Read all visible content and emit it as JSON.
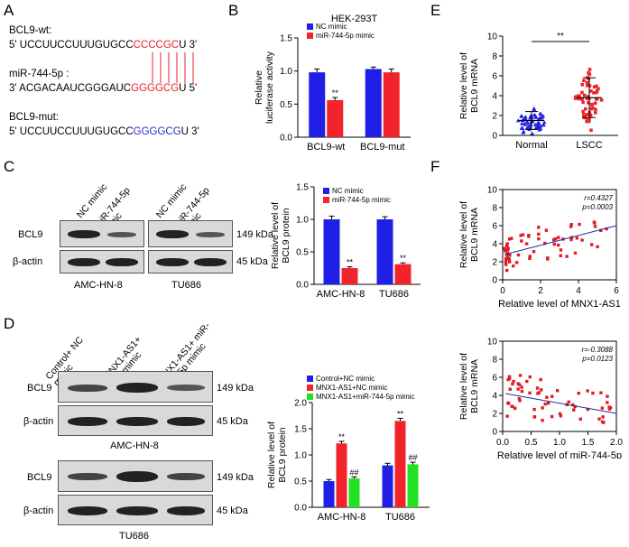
{
  "panel_labels": {
    "A": "A",
    "B": "B",
    "C": "C",
    "D": "D",
    "E": "E",
    "F": "F"
  },
  "panelA": {
    "wt_label": "BCL9-wt:",
    "wt_prefix": "5' UCCUUCCUUUGUGCC",
    "wt_seed": "CCCCGC",
    "wt_suffix": "U 3'",
    "mir_label": "miR-744-5p :",
    "mir_prefix": "3' ACGACAAUCGGGAUC",
    "mir_seed": "GGGGCG",
    "mir_suffix": "U 5'",
    "mut_label": "BCL9-mut:",
    "mut_prefix": "5' UCCUUCCUUUGUGCC",
    "mut_seed": "GGGGCG",
    "mut_suffix": "U 3'"
  },
  "panelC_blot": {
    "lanes": [
      "NC mimic",
      "miR-744-5p mimic",
      "NC mimic",
      "miR-744-5p mimic"
    ],
    "rows": [
      "BCL9",
      "β-actin"
    ],
    "kda": [
      "149 kDa",
      "45 kDa"
    ],
    "cells": [
      "AMC-HN-8",
      "TU686"
    ]
  },
  "panelD_blot": {
    "lanes": [
      "Control+ NC mimic",
      "MNX1-AS1+ NC mimic",
      "MNX1-AS1+ miR-744-5p mimic"
    ],
    "rows": [
      "BCL9",
      "β-actin"
    ],
    "kda": [
      "149 kDa",
      "45 kDa"
    ],
    "cells": [
      "AMC-HN-8",
      "TU686"
    ]
  },
  "colors": {
    "blue": "#1f1fe6",
    "red": "#f0242a",
    "green": "#22e022",
    "scatter": "#e11c26",
    "fit": "#1a2ea0"
  },
  "chart_data": [
    {
      "id": "B",
      "type": "bar",
      "title": "HEK-293T",
      "categories": [
        "BCL9-wt",
        "BCL9-mut"
      ],
      "ylabel": "Relative luciferase activity",
      "ylim": [
        0,
        1.5
      ],
      "yticks": [
        "0.0",
        "0.5",
        "1.0",
        "1.5"
      ],
      "series": [
        {
          "name": "NC mimic",
          "values": [
            0.98,
            1.03
          ],
          "errors": [
            0.05,
            0.03
          ],
          "stars": [
            "",
            ""
          ]
        },
        {
          "name": "miR-744-5p mimic",
          "values": [
            0.56,
            0.98
          ],
          "errors": [
            0.04,
            0.05
          ],
          "stars": [
            "**",
            ""
          ]
        }
      ]
    },
    {
      "id": "C",
      "type": "bar",
      "categories": [
        "AMC-HN-8",
        "TU686"
      ],
      "ylabel": "Relative level of BCL9 protein",
      "ylim": [
        0,
        1.5
      ],
      "yticks": [
        "0.0",
        "0.5",
        "1.0",
        "1.5"
      ],
      "series": [
        {
          "name": "NC mimic",
          "values": [
            1.0,
            1.0
          ],
          "errors": [
            0.05,
            0.04
          ],
          "stars": [
            "",
            ""
          ]
        },
        {
          "name": "miR-744-5p mimic",
          "values": [
            0.25,
            0.31
          ],
          "errors": [
            0.02,
            0.02
          ],
          "stars": [
            "**",
            "**"
          ]
        }
      ]
    },
    {
      "id": "D",
      "type": "bar",
      "categories": [
        "AMC-HN-8",
        "TU686"
      ],
      "ylabel": "Relative level of BCL9 protein",
      "ylim": [
        0,
        2.0
      ],
      "yticks": [
        "0.0",
        "0.5",
        "1.0",
        "1.5",
        "2.0"
      ],
      "series": [
        {
          "name": "Control+NC mimic",
          "values": [
            0.5,
            0.8
          ],
          "errors": [
            0.03,
            0.04
          ],
          "stars": [
            "",
            ""
          ]
        },
        {
          "name": "MNX1-AS1+NC mimic",
          "values": [
            1.22,
            1.65
          ],
          "errors": [
            0.04,
            0.05
          ],
          "stars": [
            "**",
            "**"
          ]
        },
        {
          "name": "MNX1-AS1+miR-744-5p mimic",
          "values": [
            0.55,
            0.82
          ],
          "errors": [
            0.03,
            0.04
          ],
          "stars": [
            "##",
            "##"
          ]
        }
      ]
    },
    {
      "id": "E",
      "type": "scatter",
      "categories": [
        "Normal",
        "LSCC"
      ],
      "ylabel": "Relative level of BCL9 mRNA",
      "ylim": [
        0,
        10
      ],
      "yticks": [
        "0",
        "2",
        "4",
        "6",
        "8",
        "10"
      ],
      "means": [
        1.5,
        3.8
      ],
      "sd": [
        0.9,
        2.0
      ],
      "significance": "**"
    },
    {
      "id": "F1",
      "type": "scatter",
      "xlabel": "Relative level of MNX1-AS1",
      "ylabel": "Relative level of BCL9 mRNA",
      "xlim": [
        0,
        6
      ],
      "ylim": [
        0,
        10
      ],
      "xticks": [
        "0",
        "2",
        "4",
        "6"
      ],
      "yticks": [
        "0",
        "2",
        "4",
        "6",
        "8",
        "10"
      ],
      "stats": [
        "r=0.4327",
        "p=0.0003"
      ],
      "fit": [
        [
          0.1,
          2.8
        ],
        [
          6,
          6.0
        ]
      ]
    },
    {
      "id": "F2",
      "type": "scatter",
      "xlabel": "Relative level of miR-744-5p",
      "ylabel": "Relative level of BCL9 mRNA",
      "xlim": [
        0,
        2
      ],
      "ylim": [
        0,
        10
      ],
      "xticks": [
        "0.0",
        "0.5",
        "1.0",
        "1.5",
        "2.0"
      ],
      "yticks": [
        "0",
        "2",
        "4",
        "6",
        "8",
        "10"
      ],
      "stats": [
        "r=-0.3088",
        "p=0.0123"
      ],
      "fit": [
        [
          0.05,
          4.2
        ],
        [
          2,
          2.0
        ]
      ]
    }
  ]
}
